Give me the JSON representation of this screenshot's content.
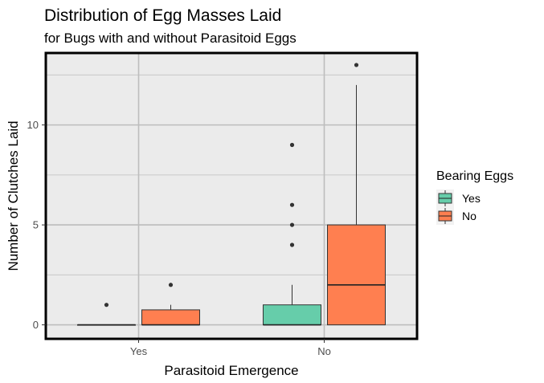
{
  "chart_data": {
    "type": "boxplot",
    "title": "Distribution of Egg Masses Laid",
    "subtitle": "for Bugs with and without Parasitoid Eggs",
    "xlabel": "Parasitoid Emergence",
    "ylabel": "Number of Clutches Laid",
    "categories": [
      "Yes",
      "No"
    ],
    "ylim": [
      -0.7,
      13.6
    ],
    "yticks": [
      0,
      5,
      10
    ],
    "grid": true,
    "legend": {
      "title": "Bearing Eggs",
      "placement": "right"
    },
    "series": [
      {
        "name": "Yes",
        "color": "#66CDAA",
        "boxes": [
          {
            "category": "Yes",
            "min": 0,
            "q1": 0,
            "median": 0,
            "q3": 0,
            "max": 0,
            "outliers": [
              1
            ]
          },
          {
            "category": "No",
            "min": 0,
            "q1": 0,
            "median": 0,
            "q3": 1,
            "max": 2,
            "outliers": [
              4,
              5,
              6,
              9
            ]
          }
        ]
      },
      {
        "name": "No",
        "color": "#FF7F50",
        "boxes": [
          {
            "category": "Yes",
            "min": 0,
            "q1": 0,
            "median": 0,
            "q3": 0.75,
            "max": 1,
            "outliers": [
              2
            ]
          },
          {
            "category": "No",
            "min": 0,
            "q1": 0,
            "median": 2,
            "q3": 5,
            "max": 12,
            "outliers": [
              13
            ]
          }
        ]
      }
    ]
  }
}
